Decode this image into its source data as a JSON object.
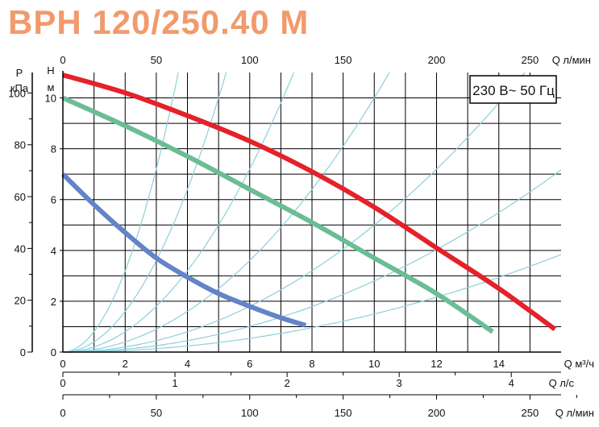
{
  "title": "BPH 120/250.40 M",
  "chart_data": {
    "type": "line",
    "title": "BPH 120/250.40 M",
    "annotation": "230 В~ 50 Гц",
    "x_axes": {
      "q_m3h": {
        "label": "Q м³/ч",
        "range": [
          0,
          16
        ],
        "ticks": [
          0,
          2,
          4,
          6,
          8,
          10,
          12,
          14
        ]
      },
      "q_lmin_top": {
        "label": "Q л/мин",
        "ticks": [
          0,
          50,
          100,
          150,
          200,
          250
        ]
      },
      "q_ls": {
        "label": "Q л/с",
        "ticks": [
          0,
          1,
          2,
          3,
          4
        ]
      },
      "q_lmin_bottom": {
        "label": "Q л/мин",
        "ticks": [
          0,
          50,
          100,
          150,
          200,
          250
        ]
      }
    },
    "y_axes": {
      "head_m": {
        "label_top": "Н",
        "label_bottom": "м",
        "range": [
          0,
          11
        ],
        "ticks": [
          0,
          2,
          4,
          6,
          8,
          10
        ]
      },
      "pressure_kpa": {
        "label_top": "Р",
        "label_bottom": "кПа",
        "ticks": [
          0,
          20,
          40,
          60,
          80,
          100
        ]
      }
    },
    "grid": true,
    "series": [
      {
        "color": "#e52129",
        "x": [
          0,
          2,
          4,
          6,
          8,
          10,
          12,
          14,
          15.8
        ],
        "y": [
          10.9,
          10.2,
          9.3,
          8.3,
          7.1,
          5.7,
          4.1,
          2.5,
          0.9
        ]
      },
      {
        "color": "#6bbd96",
        "x": [
          0,
          2,
          4,
          6,
          8,
          10,
          12,
          13.8
        ],
        "y": [
          10.0,
          8.9,
          7.7,
          6.4,
          5.1,
          3.7,
          2.3,
          0.8
        ]
      },
      {
        "color": "#6483c8",
        "x": [
          0,
          1,
          2,
          3,
          4,
          5,
          6,
          7,
          7.8
        ],
        "y": [
          7.0,
          5.8,
          4.7,
          3.7,
          2.95,
          2.3,
          1.8,
          1.35,
          1.05
        ]
      }
    ],
    "system_curves": {
      "color": "#8ecfd9",
      "k": [
        0.8,
        0.4,
        0.2,
        0.1,
        0.05,
        0.028,
        0.015
      ]
    }
  }
}
